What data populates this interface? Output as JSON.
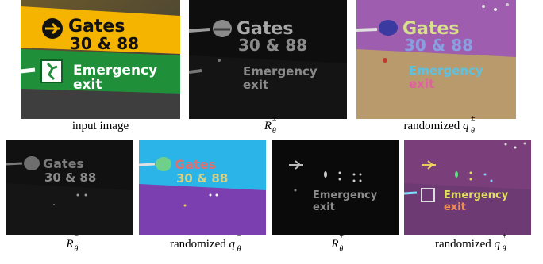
{
  "figure": {
    "panels": [
      {
        "id": "input",
        "caption": "input image"
      },
      {
        "id": "R_pm",
        "symbol": "R",
        "superscript": "±",
        "subscript": "θ"
      },
      {
        "id": "q_pm",
        "prefix": "randomized ",
        "symbol": "q",
        "superscript": "±",
        "subscript": "θ"
      },
      {
        "id": "R_minus",
        "symbol": "R",
        "superscript": "−",
        "subscript": "θ"
      },
      {
        "id": "q_minus",
        "prefix": "randomized ",
        "symbol": "q",
        "superscript": "−",
        "subscript": "θ"
      },
      {
        "id": "R_plus",
        "symbol": "R",
        "superscript": "+",
        "subscript": "θ"
      },
      {
        "id": "q_plus",
        "prefix": "randomized ",
        "symbol": "q",
        "superscript": "+",
        "subscript": "θ"
      }
    ],
    "sign": {
      "line1": "Gates",
      "line2": "30 & 88",
      "line3": "Emergency",
      "line4": "exit"
    }
  }
}
